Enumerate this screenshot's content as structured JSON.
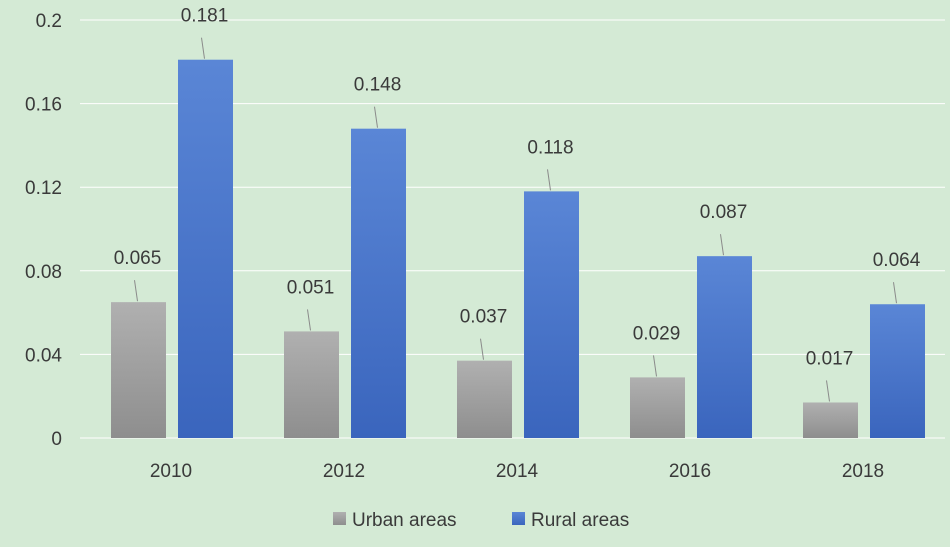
{
  "chart_data": {
    "type": "bar",
    "categories": [
      "2010",
      "2012",
      "2014",
      "2016",
      "2018"
    ],
    "series": [
      {
        "name": "Urban areas",
        "values": [
          0.065,
          0.051,
          0.037,
          0.029,
          0.017
        ],
        "labels": [
          "0.065",
          "0.051",
          "0.037",
          "0.029",
          "0.017"
        ],
        "color": "#9e9e9e"
      },
      {
        "name": "Rural areas",
        "values": [
          0.181,
          0.148,
          0.118,
          0.087,
          0.064
        ],
        "labels": [
          "0.181",
          "0.148",
          "0.118",
          "0.087",
          "0.064"
        ],
        "color": "#4472c4"
      }
    ],
    "yticks": [
      "0",
      "0.04",
      "0.08",
      "0.12",
      "0.16",
      "0.2"
    ],
    "ylim": [
      0,
      0.2
    ],
    "grid": true,
    "legend_position": "bottom",
    "title": "",
    "xlabel": "",
    "ylabel": ""
  },
  "colors": {
    "background": "#d4ead5",
    "gridline": "#ffffff",
    "axis_text": "#3a3a3a"
  }
}
